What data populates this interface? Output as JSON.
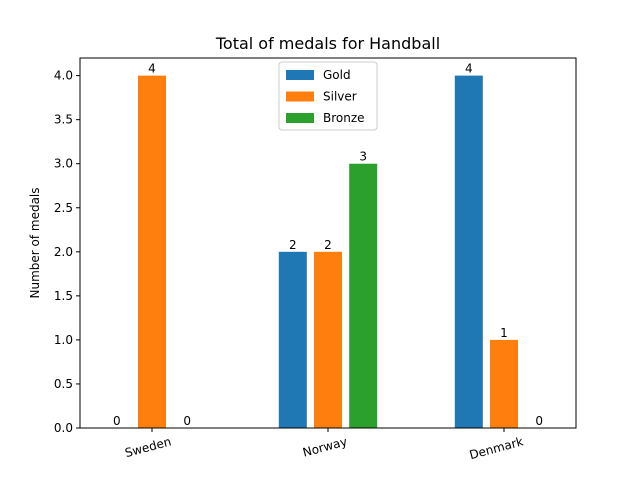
{
  "chart_data": {
    "type": "bar",
    "title": "Total of  medals for Handball",
    "xlabel": "",
    "ylabel": "Number of medals",
    "categories": [
      "Sweden",
      "Norway",
      "Denmark"
    ],
    "series": [
      {
        "name": "Gold",
        "color": "#1f77b4",
        "values": [
          0,
          2,
          4
        ]
      },
      {
        "name": "Silver",
        "color": "#ff7f0e",
        "values": [
          4,
          2,
          1
        ]
      },
      {
        "name": "Bronze",
        "color": "#2ca02c",
        "values": [
          0,
          3,
          0
        ]
      }
    ],
    "ylim": [
      0,
      4.2
    ],
    "yticks": [
      "0.0",
      "0.5",
      "1.0",
      "1.5",
      "2.0",
      "2.5",
      "3.0",
      "3.5",
      "4.0"
    ],
    "grid": false,
    "legend": "upper-center",
    "xtick_rotation": 15
  }
}
